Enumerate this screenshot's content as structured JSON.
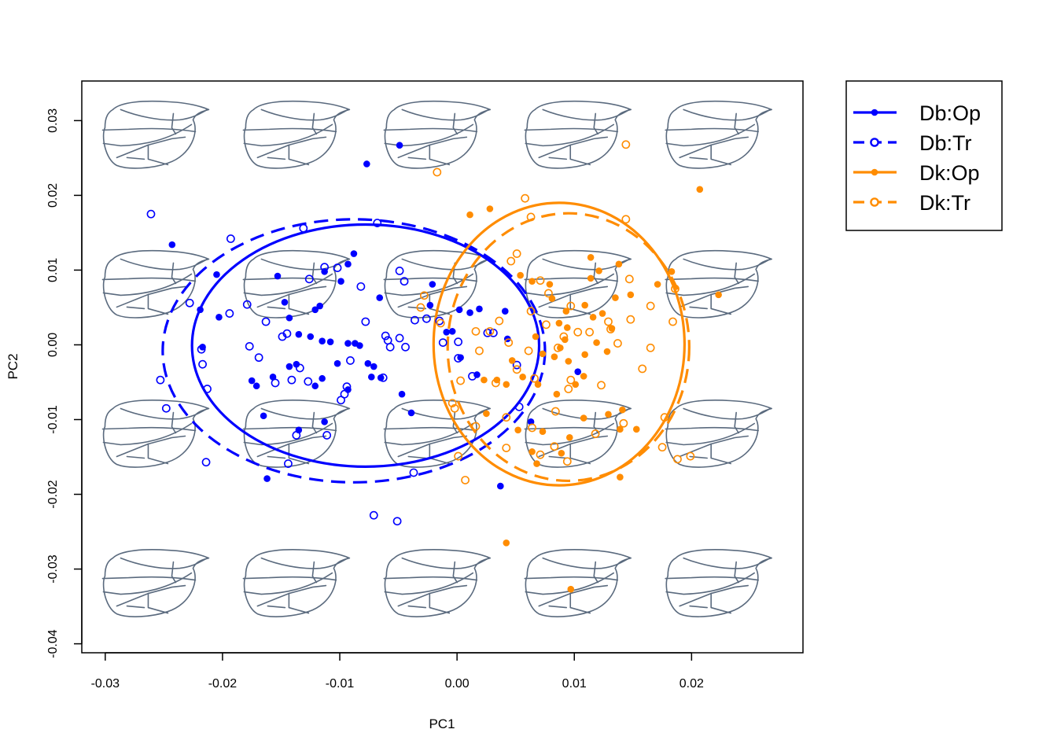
{
  "chart_data": {
    "type": "scatter",
    "xlabel": "PC1",
    "ylabel": "PC2",
    "xlim": [
      -0.032,
      0.0295
    ],
    "ylim": [
      -0.0412,
      0.0353
    ],
    "xticks": [
      -0.03,
      -0.02,
      -0.01,
      0.0,
      0.01,
      0.02
    ],
    "xtick_labels": [
      "-0.03",
      "-0.02",
      "-0.01",
      "0.00",
      "0.01",
      "0.02"
    ],
    "yticks": [
      -0.04,
      -0.03,
      -0.02,
      -0.01,
      0.0,
      0.01,
      0.02,
      0.03
    ],
    "ytick_labels": [
      "-0.04",
      "-0.03",
      "-0.02",
      "-0.01",
      "0.00",
      "0.01",
      "0.02",
      "0.03"
    ],
    "grid": false,
    "legend_position": "outside-top-right",
    "background_glyph": "wing-outline",
    "background_glyph_x": [
      -0.026,
      -0.014,
      -0.002,
      0.01,
      0.022
    ],
    "background_glyph_y": [
      0.028,
      0.008,
      -0.012,
      -0.032
    ],
    "colors": {
      "Db": "#0000FF",
      "Dk": "#FF8C00",
      "wing": "#5a6a7e"
    },
    "series": [
      {
        "name": "Db:Op",
        "color": "#0000FF",
        "marker": "filled",
        "line": "solid",
        "ellipse": {
          "cx": -0.0078,
          "cy": -0.0001,
          "rx": 0.0148,
          "ry": 0.0162
        },
        "points": [
          [
            -0.0243,
            0.0134
          ],
          [
            -0.0219,
            0.0047
          ],
          [
            -0.0205,
            0.0094
          ],
          [
            -0.0203,
            0.0037
          ],
          [
            -0.0217,
            -0.0003
          ],
          [
            -0.0153,
            0.0092
          ],
          [
            -0.0147,
            0.0057
          ],
          [
            -0.0143,
            0.0036
          ],
          [
            -0.0121,
            0.0047
          ],
          [
            -0.0117,
            0.0052
          ],
          [
            -0.0113,
            0.0098
          ],
          [
            -0.0093,
            0.0108
          ],
          [
            -0.0088,
            0.0122
          ],
          [
            -0.0099,
            0.0085
          ],
          [
            -0.0077,
            0.0242
          ],
          [
            -0.0049,
            0.0267
          ],
          [
            -0.0115,
            0.0005
          ],
          [
            -0.0135,
            0.0014
          ],
          [
            -0.0125,
            0.0011
          ],
          [
            -0.0108,
            0.0004
          ],
          [
            -0.0093,
            0.0002
          ],
          [
            -0.0087,
            0.0002
          ],
          [
            -0.0083,
            -0.0001
          ],
          [
            -0.0102,
            -0.0025
          ],
          [
            -0.0115,
            -0.0045
          ],
          [
            -0.0121,
            -0.0055
          ],
          [
            -0.0143,
            -0.0029
          ],
          [
            -0.0137,
            -0.0026
          ],
          [
            -0.0157,
            -0.0043
          ],
          [
            -0.0171,
            -0.0055
          ],
          [
            -0.0175,
            -0.0048
          ],
          [
            -0.0165,
            -0.0095
          ],
          [
            -0.0162,
            -0.0179
          ],
          [
            -0.0135,
            -0.0114
          ],
          [
            -0.0113,
            -0.0103
          ],
          [
            -0.0076,
            -0.0025
          ],
          [
            -0.0073,
            -0.0043
          ],
          [
            -0.0093,
            -0.006
          ],
          [
            -0.0065,
            -0.0044
          ],
          [
            -0.0047,
            -0.0066
          ],
          [
            -0.0039,
            -0.0091
          ],
          [
            -0.0066,
            0.0063
          ],
          [
            -0.0071,
            -0.0029
          ],
          [
            -0.0021,
            0.0081
          ],
          [
            -0.0023,
            0.0053
          ],
          [
            -0.0009,
            0.0017
          ],
          [
            -0.0004,
            0.0018
          ],
          [
            0.0002,
            0.0047
          ],
          [
            0.0003,
            -0.0017
          ],
          [
            0.0017,
            -0.004
          ],
          [
            0.0037,
            -0.0189
          ],
          [
            0.0063,
            -0.0103
          ],
          [
            0.0103,
            -0.0036
          ],
          [
            0.0041,
            0.0045
          ],
          [
            0.0043,
            0.0008
          ],
          [
            0.0019,
            0.0048
          ],
          [
            0.0011,
            0.0043
          ]
        ]
      },
      {
        "name": "Db:Tr",
        "color": "#0000FF",
        "marker": "open",
        "line": "dashed",
        "ellipse": {
          "cx": -0.0088,
          "cy": -0.0008,
          "rx": 0.0163,
          "ry": 0.0176
        },
        "points": [
          [
            -0.0261,
            0.0175
          ],
          [
            -0.0193,
            0.0142
          ],
          [
            -0.0131,
            0.0156
          ],
          [
            -0.0068,
            0.0163
          ],
          [
            -0.0113,
            0.0104
          ],
          [
            -0.0126,
            0.0088
          ],
          [
            -0.0102,
            0.0103
          ],
          [
            -0.0082,
            0.0078
          ],
          [
            -0.0228,
            0.0056
          ],
          [
            -0.0194,
            0.0042
          ],
          [
            -0.0179,
            0.0054
          ],
          [
            -0.0218,
            -0.0006
          ],
          [
            -0.0217,
            -0.0026
          ],
          [
            -0.0213,
            -0.0059
          ],
          [
            -0.0253,
            -0.0047
          ],
          [
            -0.0248,
            -0.0085
          ],
          [
            -0.0163,
            0.0031
          ],
          [
            -0.0169,
            -0.0017
          ],
          [
            -0.0177,
            -0.0002
          ],
          [
            -0.0149,
            0.0011
          ],
          [
            -0.0145,
            0.0015
          ],
          [
            -0.0134,
            -0.0031
          ],
          [
            -0.0155,
            -0.0051
          ],
          [
            -0.0141,
            -0.0047
          ],
          [
            -0.0127,
            -0.0049
          ],
          [
            -0.0096,
            -0.0066
          ],
          [
            -0.0099,
            -0.0074
          ],
          [
            -0.0094,
            -0.0056
          ],
          [
            -0.0091,
            -0.0021
          ],
          [
            -0.0078,
            0.0031
          ],
          [
            -0.0061,
            0.0012
          ],
          [
            -0.0059,
            0.0006
          ],
          [
            -0.0049,
            0.0009
          ],
          [
            -0.0057,
            -0.0003
          ],
          [
            -0.0063,
            -0.0044
          ],
          [
            -0.0044,
            -0.0003
          ],
          [
            -0.0036,
            0.0033
          ],
          [
            -0.0045,
            0.0085
          ],
          [
            -0.0049,
            0.0099
          ],
          [
            -0.0026,
            0.0035
          ],
          [
            -0.0015,
            0.0032
          ],
          [
            -0.0012,
            0.0003
          ],
          [
            0.0001,
            0.0004
          ],
          [
            0.0001,
            -0.0018
          ],
          [
            0.0013,
            -0.0042
          ],
          [
            0.0026,
            0.0016
          ],
          [
            0.0031,
            0.0016
          ],
          [
            0.0051,
            -0.0027
          ],
          [
            0.0053,
            -0.0083
          ],
          [
            -0.0137,
            -0.0121
          ],
          [
            -0.0111,
            -0.0121
          ],
          [
            -0.0144,
            -0.0159
          ],
          [
            -0.0037,
            -0.0171
          ],
          [
            -0.0071,
            -0.0228
          ],
          [
            -0.0051,
            -0.0236
          ],
          [
            -0.0214,
            -0.0157
          ]
        ]
      },
      {
        "name": "Dk:Op",
        "color": "#FF8C00",
        "marker": "filled",
        "line": "solid",
        "ellipse": {
          "cx": 0.0087,
          "cy": 0.0001,
          "rx": 0.0107,
          "ry": 0.0189
        },
        "points": [
          [
            0.0011,
            0.0174
          ],
          [
            0.0028,
            0.0182
          ],
          [
            0.0207,
            0.0208
          ],
          [
            0.0121,
            0.0099
          ],
          [
            0.0138,
            0.0108
          ],
          [
            0.0114,
            0.0117
          ],
          [
            0.0054,
            0.0093
          ],
          [
            0.0064,
            0.0085
          ],
          [
            0.0079,
            0.0081
          ],
          [
            0.0114,
            0.0089
          ],
          [
            0.0135,
            0.0063
          ],
          [
            0.0171,
            0.0081
          ],
          [
            0.0148,
            0.0067
          ],
          [
            0.0183,
            0.0098
          ],
          [
            0.0223,
            0.0067
          ],
          [
            0.0081,
            0.0062
          ],
          [
            0.0093,
            0.0045
          ],
          [
            0.0109,
            0.0053
          ],
          [
            0.0116,
            0.0037
          ],
          [
            0.0124,
            0.0042
          ],
          [
            0.0094,
            0.0023
          ],
          [
            0.0092,
            0.0007
          ],
          [
            0.0088,
            -0.0004
          ],
          [
            0.0083,
            -0.0016
          ],
          [
            0.0095,
            -0.0022
          ],
          [
            0.0109,
            -0.0013
          ],
          [
            0.0108,
            -0.0042
          ],
          [
            0.0101,
            -0.0053
          ],
          [
            0.0085,
            -0.0066
          ],
          [
            0.0069,
            -0.0053
          ],
          [
            0.0056,
            -0.0043
          ],
          [
            0.0047,
            -0.0021
          ],
          [
            0.0042,
            -0.0053
          ],
          [
            0.0034,
            -0.0047
          ],
          [
            0.0023,
            -0.0047
          ],
          [
            0.0025,
            -0.0092
          ],
          [
            0.0052,
            -0.0114
          ],
          [
            0.0064,
            -0.0143
          ],
          [
            0.0068,
            -0.0159
          ],
          [
            0.0089,
            -0.0145
          ],
          [
            0.0139,
            -0.0113
          ],
          [
            0.0153,
            -0.0113
          ],
          [
            0.0141,
            -0.0087
          ],
          [
            0.0129,
            -0.0093
          ],
          [
            0.0108,
            -0.0098
          ],
          [
            0.0096,
            -0.0124
          ],
          [
            0.0073,
            -0.0116
          ],
          [
            0.0042,
            -0.0265
          ],
          [
            0.0097,
            -0.0327
          ],
          [
            0.0139,
            -0.0177
          ],
          [
            0.0087,
            0.0029
          ],
          [
            0.0132,
            0.0022
          ],
          [
            0.0119,
            0.0003
          ],
          [
            0.0128,
            -0.0009
          ],
          [
            0.0067,
            0.0011
          ],
          [
            0.0073,
            -0.0012
          ]
        ]
      },
      {
        "name": "Dk:Tr",
        "color": "#FF8C00",
        "marker": "open",
        "line": "dashed",
        "ellipse": {
          "cx": 0.0095,
          "cy": -0.0003,
          "rx": 0.0103,
          "ry": 0.0179
        },
        "points": [
          [
            -0.0017,
            0.0231
          ],
          [
            0.0144,
            0.0268
          ],
          [
            0.0058,
            0.0196
          ],
          [
            0.0063,
            0.0171
          ],
          [
            0.0144,
            0.0168
          ],
          [
            0.0051,
            0.0122
          ],
          [
            0.0046,
            0.0112
          ],
          [
            0.0071,
            0.0086
          ],
          [
            0.0147,
            0.0088
          ],
          [
            0.0186,
            0.0075
          ],
          [
            0.0165,
            0.0052
          ],
          [
            0.0184,
            0.0031
          ],
          [
            0.0148,
            0.0034
          ],
          [
            0.0129,
            0.0031
          ],
          [
            0.0097,
            0.0052
          ],
          [
            0.0078,
            0.0069
          ],
          [
            0.0063,
            0.0045
          ],
          [
            -0.0028,
            0.0066
          ],
          [
            -0.0031,
            0.005
          ],
          [
            -0.0014,
            0.0029
          ],
          [
            0.0036,
            0.0032
          ],
          [
            0.0016,
            0.0018
          ],
          [
            0.0028,
            0.0018
          ],
          [
            0.0019,
            -0.0008
          ],
          [
            0.0044,
            0.0003
          ],
          [
            0.0061,
            -0.0008
          ],
          [
            0.0086,
            -0.0004
          ],
          [
            0.0076,
            0.0027
          ],
          [
            0.0091,
            0.0011
          ],
          [
            0.0103,
            0.0017
          ],
          [
            0.0113,
            0.0017
          ],
          [
            0.0131,
            0.0021
          ],
          [
            0.0137,
            0.0002
          ],
          [
            0.0165,
            -0.0004
          ],
          [
            0.0158,
            -0.0032
          ],
          [
            0.0123,
            -0.0054
          ],
          [
            0.0095,
            -0.0059
          ],
          [
            0.0066,
            -0.0045
          ],
          [
            0.0051,
            -0.0033
          ],
          [
            0.0033,
            -0.0051
          ],
          [
            0.0003,
            -0.0048
          ],
          [
            -0.0004,
            -0.0078
          ],
          [
            0.0042,
            -0.0097
          ],
          [
            0.0064,
            -0.0111
          ],
          [
            0.0084,
            -0.0089
          ],
          [
            0.0118,
            -0.0119
          ],
          [
            0.0142,
            -0.0105
          ],
          [
            0.0177,
            -0.0097
          ],
          [
            0.0042,
            -0.0138
          ],
          [
            0.0071,
            -0.0147
          ],
          [
            0.0083,
            -0.0136
          ],
          [
            0.0094,
            -0.0156
          ],
          [
            0.0175,
            -0.0137
          ],
          [
            0.0188,
            -0.0153
          ],
          [
            0.0199,
            -0.0149
          ],
          [
            0.0007,
            -0.0181
          ],
          [
            0.0001,
            -0.0149
          ],
          [
            0.0016,
            -0.0109
          ],
          [
            -0.0002,
            -0.0085
          ],
          [
            0.0097,
            -0.0047
          ]
        ]
      }
    ]
  }
}
